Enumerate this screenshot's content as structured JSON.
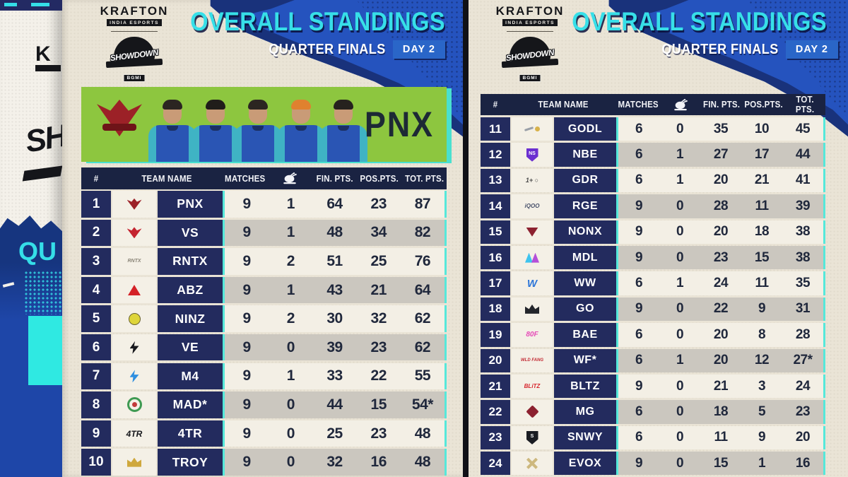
{
  "colors": {
    "accent_cyan": "#37dfe8",
    "brush_blue": "#2553be",
    "navy_header": "#1a2342",
    "navy_cell": "#232b5e",
    "banner_green": "#8dc63f",
    "badge_blue": "#2a66c8",
    "paper": "#eae4d6",
    "row_light": "#f3efe5",
    "row_gray": "#cbc7bf",
    "teal_edge": "#49e0cf"
  },
  "poster": {
    "top_fragment": "K",
    "mid_fragment": "SH",
    "bottom_fragment": "QU"
  },
  "header": {
    "brand": "KRAFTON",
    "brand_sub": "INDIA ESPORTS",
    "event": "SHOWDOWN",
    "event_sub": "BGMI",
    "title": "OVERALL STANDINGS",
    "subtitle": "QUARTER FINALS",
    "day_badge": "DAY 2"
  },
  "featured": {
    "team_name": "PNX",
    "players": [
      {
        "hair": "#2b2521"
      },
      {
        "hair": "#201d1a"
      },
      {
        "hair": "#2b2521"
      },
      {
        "hair": "#e0812f"
      },
      {
        "hair": "#26221e"
      }
    ]
  },
  "columns": [
    {
      "key": "rank",
      "label": "#"
    },
    {
      "key": "team",
      "label": "TEAM NAME"
    },
    {
      "key": "matches",
      "label": "MATCHES"
    },
    {
      "key": "wwcd",
      "label": "",
      "icon": "chicken-dinner-icon"
    },
    {
      "key": "fin",
      "label": "FIN. PTS."
    },
    {
      "key": "pos",
      "label": "POS.PTS."
    },
    {
      "key": "tot",
      "label": "TOT. PTS."
    }
  ],
  "left_table": {
    "rows": [
      {
        "rank": "1",
        "team": "PNX",
        "logo": {
          "shape": "bird",
          "color": "#9c2127",
          "name": "pnx-phoenix-logo"
        },
        "matches": "9",
        "wwcd": "1",
        "fin": "64",
        "pos": "23",
        "tot": "87"
      },
      {
        "rank": "2",
        "team": "VS",
        "logo": {
          "shape": "bird",
          "color": "#c42430",
          "name": "vs-bird-logo"
        },
        "matches": "9",
        "wwcd": "1",
        "fin": "48",
        "pos": "34",
        "tot": "82"
      },
      {
        "rank": "3",
        "team": "RNTX",
        "logo": {
          "shape": "text",
          "text": "RNTX",
          "color": "#8a8578",
          "size": 7,
          "name": "rntx-wordmark-logo"
        },
        "matches": "9",
        "wwcd": "2",
        "fin": "51",
        "pos": "25",
        "tot": "76"
      },
      {
        "rank": "4",
        "team": "ABZ",
        "logo": {
          "shape": "triangle",
          "color": "#d42127",
          "name": "abz-triangle-logo"
        },
        "matches": "9",
        "wwcd": "1",
        "fin": "43",
        "pos": "21",
        "tot": "64"
      },
      {
        "rank": "5",
        "team": "NINZ",
        "logo": {
          "shape": "circle",
          "color": "#ded53a",
          "name": "ninz-ninja-logo"
        },
        "matches": "9",
        "wwcd": "2",
        "fin": "30",
        "pos": "32",
        "tot": "62"
      },
      {
        "rank": "6",
        "team": "VE",
        "logo": {
          "shape": "bolt",
          "color": "#17181c",
          "name": "ve-black-bolt-logo"
        },
        "matches": "9",
        "wwcd": "0",
        "fin": "39",
        "pos": "23",
        "tot": "62"
      },
      {
        "rank": "7",
        "team": "M4",
        "logo": {
          "shape": "bolt",
          "color": "#2f8fe0",
          "name": "m4-blue-bolt-logo"
        },
        "matches": "9",
        "wwcd": "1",
        "fin": "33",
        "pos": "22",
        "tot": "55"
      },
      {
        "rank": "8",
        "team": "MAD*",
        "logo": {
          "shape": "ring",
          "color": "#3f9a52",
          "color2": "#c23a3a",
          "name": "mad-ring-logo"
        },
        "matches": "9",
        "wwcd": "0",
        "fin": "44",
        "pos": "15",
        "tot": "54*"
      },
      {
        "rank": "9",
        "team": "4TR",
        "logo": {
          "shape": "text",
          "text": "4TR",
          "color": "#17181c",
          "size": 12,
          "name": "4tr-wordmark-logo"
        },
        "matches": "9",
        "wwcd": "0",
        "fin": "25",
        "pos": "23",
        "tot": "48"
      },
      {
        "rank": "10",
        "team": "TROY",
        "logo": {
          "shape": "crown",
          "color": "#cfa83d",
          "name": "troy-crown-logo"
        },
        "matches": "9",
        "wwcd": "0",
        "fin": "32",
        "pos": "16",
        "tot": "48"
      }
    ]
  },
  "right_table": {
    "rows": [
      {
        "rank": "11",
        "team": "GODL",
        "logo": {
          "shape": "dashdot",
          "color": "#9aa0a8",
          "color2": "#d8b24a",
          "name": "godlike-logo"
        },
        "matches": "6",
        "wwcd": "0",
        "fin": "35",
        "pos": "10",
        "tot": "45"
      },
      {
        "rank": "12",
        "team": "NBE",
        "logo": {
          "shape": "shield",
          "color": "#6b2fd0",
          "text": "NS",
          "name": "nbe-shield-logo"
        },
        "matches": "6",
        "wwcd": "1",
        "fin": "27",
        "pos": "17",
        "tot": "44"
      },
      {
        "rank": "13",
        "team": "GDR",
        "logo": {
          "shape": "text",
          "text": "1+ ○",
          "color": "#4a4a4a",
          "size": 9,
          "name": "gdr-oneplus-logo"
        },
        "matches": "6",
        "wwcd": "1",
        "fin": "20",
        "pos": "21",
        "tot": "41"
      },
      {
        "rank": "14",
        "team": "RGE",
        "logo": {
          "shape": "text",
          "text": "iQOO",
          "color": "#47506a",
          "size": 8,
          "name": "rge-iqoo-logo"
        },
        "matches": "9",
        "wwcd": "0",
        "fin": "28",
        "pos": "11",
        "tot": "39"
      },
      {
        "rank": "15",
        "team": "NONX",
        "logo": {
          "shape": "triangle-down",
          "color": "#8c2130",
          "name": "nonx-logo"
        },
        "matches": "9",
        "wwcd": "0",
        "fin": "20",
        "pos": "18",
        "tot": "38"
      },
      {
        "rank": "16",
        "team": "MDL",
        "logo": {
          "shape": "mm",
          "color": "#3ec3ee",
          "color2": "#b44fd8",
          "name": "mdl-gradient-logo"
        },
        "matches": "9",
        "wwcd": "0",
        "fin": "23",
        "pos": "15",
        "tot": "38"
      },
      {
        "rank": "17",
        "team": "WW",
        "logo": {
          "shape": "text",
          "text": "W",
          "color": "#2f77d8",
          "size": 15,
          "name": "ww-wings-logo"
        },
        "matches": "6",
        "wwcd": "1",
        "fin": "24",
        "pos": "11",
        "tot": "35"
      },
      {
        "rank": "18",
        "team": "GO",
        "logo": {
          "shape": "crown",
          "color": "#23252b",
          "name": "go-king-logo"
        },
        "matches": "9",
        "wwcd": "0",
        "fin": "22",
        "pos": "9",
        "tot": "31"
      },
      {
        "rank": "19",
        "team": "BAE",
        "logo": {
          "shape": "text",
          "text": "80F",
          "color": "#e64cb8",
          "size": 10,
          "name": "bae-80f-logo"
        },
        "matches": "6",
        "wwcd": "0",
        "fin": "20",
        "pos": "8",
        "tot": "28"
      },
      {
        "rank": "20",
        "team": "WF*",
        "logo": {
          "shape": "text",
          "text": "WLD FANG",
          "color": "#c22731",
          "size": 6,
          "name": "wf-wildfang-logo"
        },
        "matches": "6",
        "wwcd": "1",
        "fin": "20",
        "pos": "12",
        "tot": "27*"
      },
      {
        "rank": "21",
        "team": "BLTZ",
        "logo": {
          "shape": "text",
          "text": "BLiTZ",
          "color": "#d6232b",
          "size": 8,
          "name": "bltz-blitz-logo"
        },
        "matches": "9",
        "wwcd": "0",
        "fin": "21",
        "pos": "3",
        "tot": "24"
      },
      {
        "rank": "22",
        "team": "MG",
        "logo": {
          "shape": "diamond",
          "color": "#8c2130",
          "name": "mg-maroon-gamers-logo"
        },
        "matches": "6",
        "wwcd": "0",
        "fin": "18",
        "pos": "5",
        "tot": "23"
      },
      {
        "rank": "23",
        "team": "SNWY",
        "logo": {
          "shape": "shield",
          "color": "#1a1c22",
          "text": "S",
          "name": "snwy-sirens-logo"
        },
        "matches": "6",
        "wwcd": "0",
        "fin": "11",
        "pos": "9",
        "tot": "20"
      },
      {
        "rank": "24",
        "team": "EVOX",
        "logo": {
          "shape": "x",
          "color": "#cdb87e",
          "name": "evox-x-logo"
        },
        "matches": "9",
        "wwcd": "0",
        "fin": "15",
        "pos": "1",
        "tot": "16"
      }
    ]
  }
}
